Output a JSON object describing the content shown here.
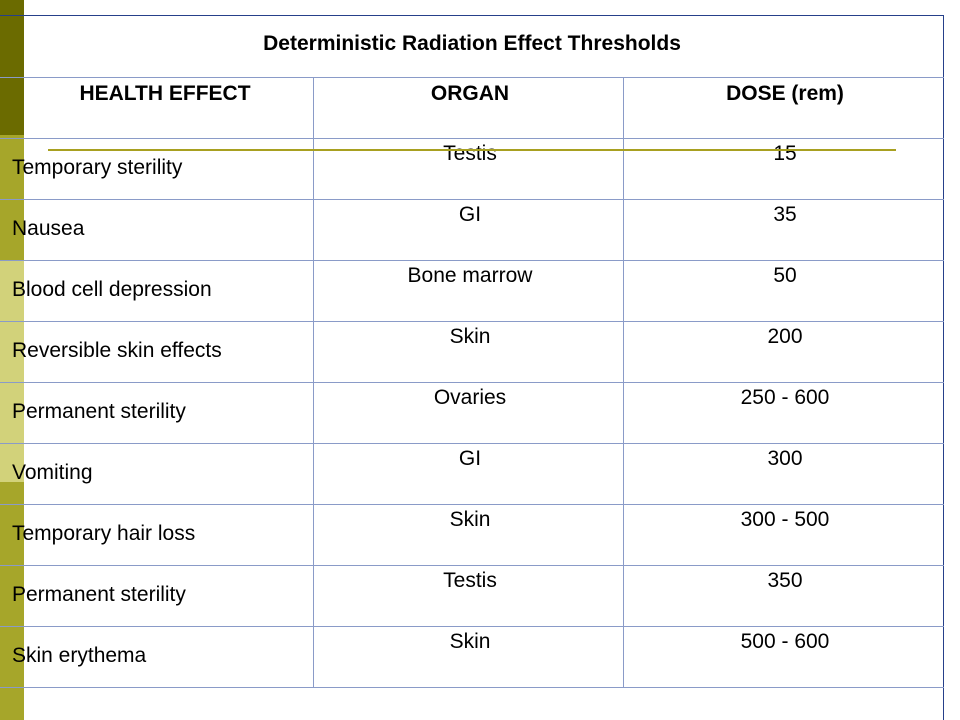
{
  "title": "Deterministic Radiation Effect Thresholds",
  "headers": {
    "effect": "HEALTH EFFECT",
    "organ": "ORGAN",
    "dose": "DOSE (rem)"
  },
  "rows": [
    {
      "effect": "Temporary sterility",
      "organ": "Testis",
      "dose": "15"
    },
    {
      "effect": "Nausea",
      "organ": "GI",
      "dose": "35"
    },
    {
      "effect": "Blood cell depression",
      "organ": "Bone marrow",
      "dose": "50"
    },
    {
      "effect": "Reversible skin effects",
      "organ": "Skin",
      "dose": "200"
    },
    {
      "effect": "Permanent sterility",
      "organ": "Ovaries",
      "dose": "250 - 600"
    },
    {
      "effect": "Vomiting",
      "organ": "GI",
      "dose": "300"
    },
    {
      "effect": "Temporary hair loss",
      "organ": "Skin",
      "dose": "300 - 500"
    },
    {
      "effect": "Permanent sterility",
      "organ": "Testis",
      "dose": "350"
    },
    {
      "effect": "Skin erythema",
      "organ": "Skin",
      "dose": "500 - 600"
    }
  ],
  "colors": {
    "stripe_dark": "#6b6b00",
    "stripe_mid": "#a6a62a",
    "stripe_light": "#d2d27a",
    "accent": "#a8a020",
    "border": "#26408a"
  }
}
